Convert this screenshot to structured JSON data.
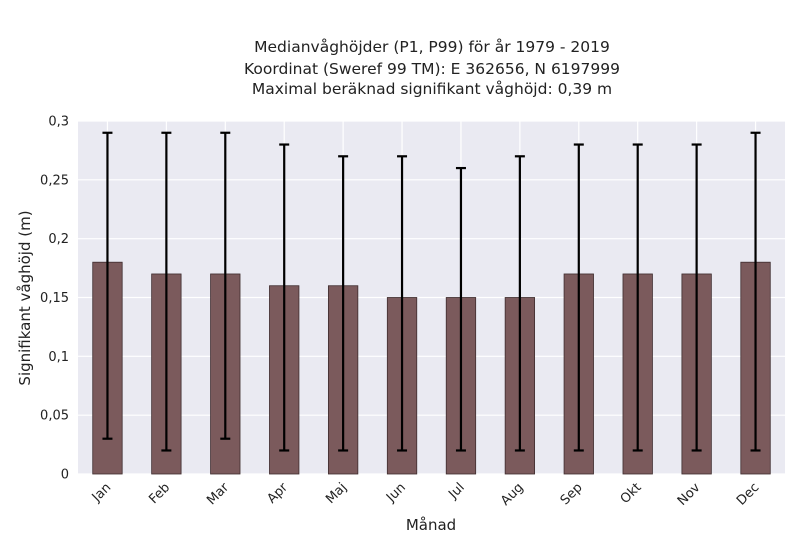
{
  "chart_data": {
    "type": "bar",
    "title_lines": [
      "Medianvåghöjder (P1, P99) för år 1979 - 2019",
      "Koordinat (Sweref 99 TM): E 362656, N 6197999",
      "Maximal beräknad signifikant våghöjd: 0,39 m"
    ],
    "xlabel": "Månad",
    "ylabel": "Signifikant våghöjd (m)",
    "categories": [
      "Jan",
      "Feb",
      "Mar",
      "Apr",
      "Maj",
      "Jun",
      "Jul",
      "Aug",
      "Sep",
      "Okt",
      "Nov",
      "Dec"
    ],
    "values": [
      0.18,
      0.17,
      0.17,
      0.16,
      0.16,
      0.15,
      0.15,
      0.15,
      0.17,
      0.17,
      0.17,
      0.18
    ],
    "error_low": [
      0.03,
      0.02,
      0.03,
      0.02,
      0.02,
      0.02,
      0.02,
      0.02,
      0.02,
      0.02,
      0.02,
      0.02
    ],
    "error_high": [
      0.29,
      0.29,
      0.29,
      0.28,
      0.27,
      0.27,
      0.26,
      0.27,
      0.28,
      0.28,
      0.28,
      0.29
    ],
    "ylim": [
      0,
      0.3
    ],
    "yticks": [
      0,
      0.05,
      0.1,
      0.15,
      0.2,
      0.25,
      0.3
    ],
    "ytick_labels": [
      "0",
      "0,05",
      "0,1",
      "0,15",
      "0,2",
      "0,25",
      "0,3"
    ],
    "grid": true,
    "colors": {
      "bar_fill": "#7b5a5c",
      "bar_edge": "#3e2c2e",
      "error_bar": "#000000",
      "plot_background": "#eaeaf2",
      "grid": "#ffffff"
    }
  }
}
